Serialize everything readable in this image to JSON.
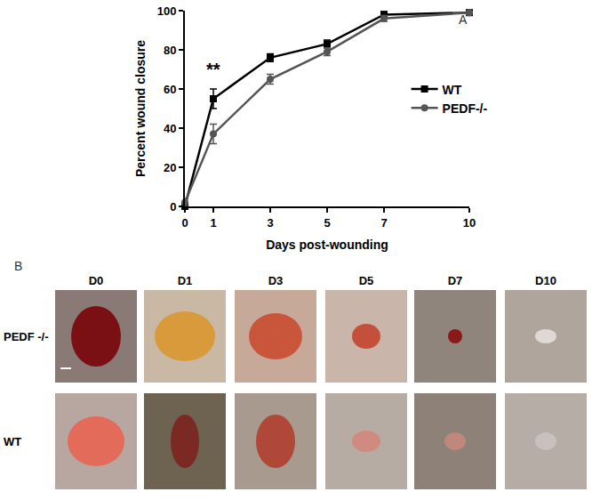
{
  "chart_data": {
    "type": "line",
    "panel_label": "A",
    "x_label": "Days post-wounding",
    "y_label": "Percent wound closure",
    "x": [
      0,
      1,
      3,
      5,
      7,
      10
    ],
    "series": [
      {
        "name": "WT",
        "color": "#000000",
        "marker": "square",
        "line_style": "solid",
        "values": [
          0,
          55,
          76,
          83,
          98,
          99
        ],
        "errors": [
          0,
          5,
          2,
          2,
          1.5,
          1
        ]
      },
      {
        "name": "PEDF-/-",
        "color": "#555555",
        "marker": "circle",
        "line_style": "solid",
        "values": [
          2,
          37,
          65,
          79,
          96,
          99
        ],
        "errors": [
          2,
          5,
          2.5,
          2,
          1.5,
          1
        ]
      }
    ],
    "xlim": [
      0,
      10
    ],
    "xticks": [
      0,
      1,
      3,
      5,
      7,
      10
    ],
    "ylim": [
      0,
      100
    ],
    "yticks": [
      0,
      20,
      40,
      60,
      80,
      100
    ],
    "grid": false,
    "legend": "right",
    "annotations": [
      {
        "text": "**",
        "x": 1,
        "y": 64
      }
    ]
  },
  "panel_b": {
    "label": "B",
    "columns": [
      "D0",
      "D1",
      "D3",
      "D5",
      "D7",
      "D10"
    ],
    "rows": [
      "PEDF -/-",
      "WT"
    ]
  }
}
